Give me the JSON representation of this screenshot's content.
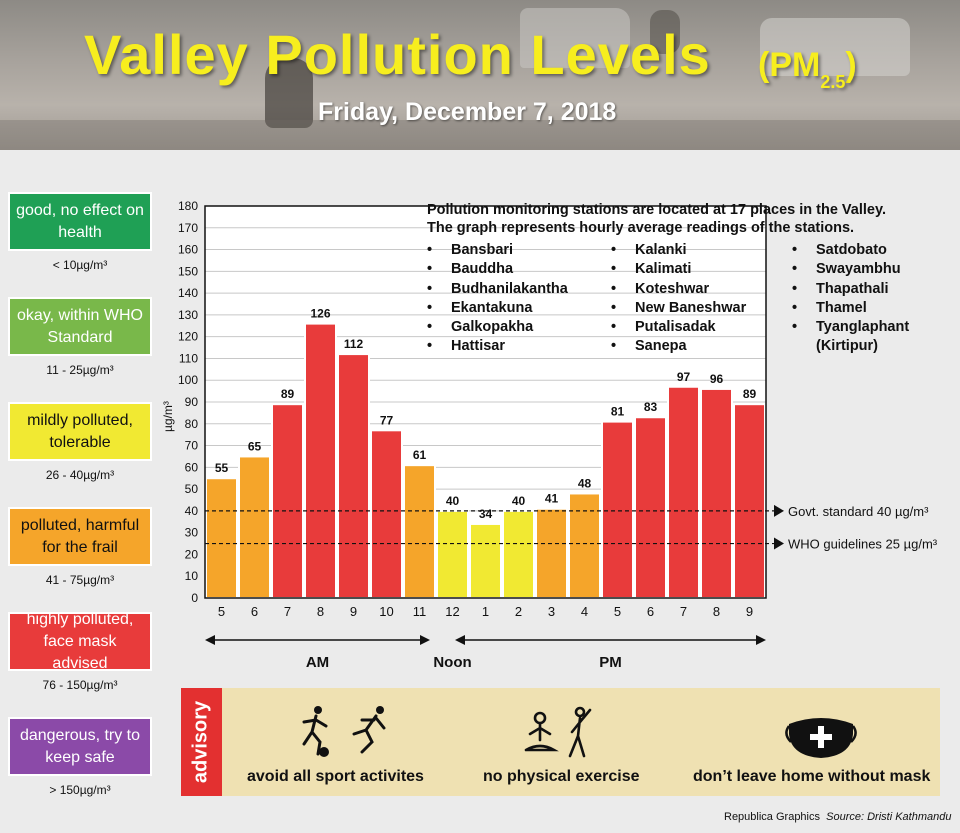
{
  "header": {
    "title": "Valley Pollution Levels",
    "pm_label": "(PM",
    "pm_sub": "2.5",
    "pm_close": ")",
    "date": "Friday, December 7, 2018"
  },
  "legend": [
    {
      "label": "good, no effect on health",
      "range": "< 10µg/m³",
      "color": "#1fa055",
      "text_color": "#ffffff"
    },
    {
      "label": "okay, within WHO Standard",
      "range": "11 - 25µg/m³",
      "color": "#79b84a",
      "text_color": "#ffffff"
    },
    {
      "label": "mildly polluted, tolerable",
      "range": "26 - 40µg/m³",
      "color": "#f1e932",
      "text_color": "#111111"
    },
    {
      "label": "polluted, harmful for the frail",
      "range": "41 - 75µg/m³",
      "color": "#f5a52a",
      "text_color": "#111111"
    },
    {
      "label": "highly polluted, face mask advised",
      "range": "76 - 150µg/m³",
      "color": "#e83b3b",
      "text_color": "#ffffff"
    },
    {
      "label": "dangerous, try to keep safe",
      "range": "> 150µg/m³",
      "color": "#8b4aa8",
      "text_color": "#ffffff"
    }
  ],
  "stations": {
    "intro_line1": "Pollution monitoring stations are located at 17 places in the Valley.",
    "intro_line2": "The graph represents hourly average readings of the stations.",
    "col1": [
      "Bansbari",
      "Bauddha",
      "Budhanilakantha",
      "Ekantakuna",
      "Galkopakha",
      "Hattisar"
    ],
    "col2": [
      "Kalanki",
      "Kalimati",
      "Koteshwar",
      "New Baneshwar",
      "Putalisadak",
      "Sanepa"
    ],
    "col3": [
      "Satdobato",
      "Swayambhu",
      "Thapathali",
      "Thamel",
      "Tyanglaphant",
      "(Kirtipur)"
    ]
  },
  "chart_data": {
    "type": "bar",
    "categories": [
      "5",
      "6",
      "7",
      "8",
      "9",
      "10",
      "11",
      "12",
      "1",
      "2",
      "3",
      "4",
      "5",
      "6",
      "7",
      "8",
      "9"
    ],
    "values": [
      55,
      65,
      89,
      126,
      112,
      77,
      61,
      40,
      34,
      40,
      41,
      48,
      81,
      83,
      97,
      96,
      89
    ],
    "ylabel": "µg/m³",
    "ylim": [
      0,
      180
    ],
    "yticks": [
      0,
      10,
      20,
      30,
      40,
      50,
      60,
      70,
      80,
      90,
      100,
      110,
      120,
      130,
      140,
      150,
      160,
      170,
      180
    ],
    "grid": true,
    "reference_lines": [
      {
        "value": 40,
        "label": "Govt. standard 40 µg/m³"
      },
      {
        "value": 25,
        "label": "WHO guidelines 25 µg/m³"
      }
    ],
    "period_labels": {
      "am": "AM",
      "noon": "Noon",
      "pm": "PM"
    },
    "color_scale": [
      {
        "max": 40,
        "color": "#f1e932"
      },
      {
        "max": 75,
        "color": "#f5a52a"
      },
      {
        "max": 150,
        "color": "#e83b3b"
      }
    ]
  },
  "advisory": {
    "tab": "advisory",
    "items": [
      {
        "text": "avoid all sport activites",
        "icon": "sports-icon"
      },
      {
        "text": "no physical exercise",
        "icon": "exercise-icon"
      },
      {
        "text": "don’t leave home without mask",
        "icon": "mask-icon"
      }
    ]
  },
  "credit": {
    "org": "Republica Graphics",
    "source": "Source: Dristi Kathmandu"
  }
}
